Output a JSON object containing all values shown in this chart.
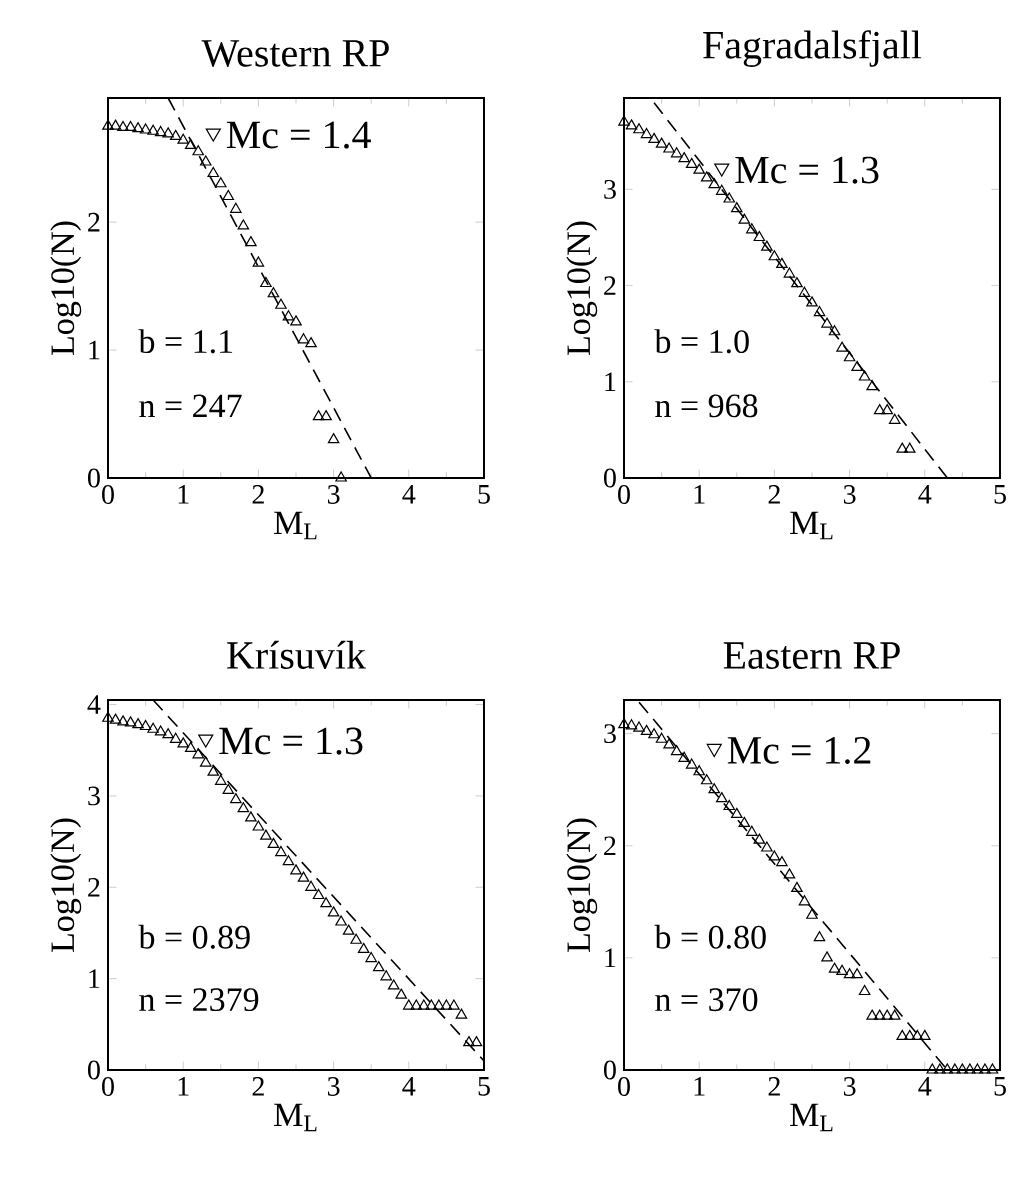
{
  "chart_data": [
    {
      "type": "scatter",
      "title": "Western RP",
      "xlabel": "M$_{L}$",
      "ylabel": "Log10(N)",
      "xlim": [
        0,
        5
      ],
      "ylim": [
        0,
        2.97
      ],
      "xticks": [
        0,
        1,
        2,
        3,
        4,
        5
      ],
      "yticks": [
        0,
        1,
        2
      ],
      "series": [
        {
          "marker": "triangle",
          "color": "#000000",
          "x": [
            0.0,
            0.1,
            0.2,
            0.3,
            0.4,
            0.5,
            0.6,
            0.7,
            0.8,
            0.9,
            1.0,
            1.1,
            1.2,
            1.3,
            1.4,
            1.5,
            1.6,
            1.7,
            1.8,
            1.9,
            2.0,
            2.1,
            2.2,
            2.3,
            2.4,
            2.5,
            2.6,
            2.7,
            2.8,
            2.9,
            3.0,
            3.1
          ],
          "values": [
            2.75,
            2.75,
            2.74,
            2.74,
            2.73,
            2.72,
            2.71,
            2.7,
            2.69,
            2.67,
            2.64,
            2.6,
            2.55,
            2.47,
            2.38,
            2.3,
            2.2,
            2.1,
            1.97,
            1.84,
            1.68,
            1.52,
            1.44,
            1.35,
            1.26,
            1.22,
            1.08,
            1.05,
            0.48,
            0.48,
            0.3,
            0.0
          ]
        },
        {
          "type": "line",
          "line_style": "dashed",
          "color": "#000000",
          "x": [
            0.8,
            3.5
          ],
          "values": [
            2.97,
            0.0
          ]
        }
      ],
      "annotations": [
        {
          "text": "Mc = 1.4",
          "x": 1.4,
          "y": 2.68
        },
        "b = 1.1",
        "n = 247"
      ]
    },
    {
      "type": "scatter",
      "title": "Fagradalsfjall",
      "xlabel": "M$_{L}$",
      "ylabel": "Log10(N)",
      "xlim": [
        0,
        5
      ],
      "ylim": [
        0,
        3.95
      ],
      "xticks": [
        0,
        1,
        2,
        3,
        4,
        5
      ],
      "yticks": [
        0,
        1,
        2,
        3
      ],
      "series": [
        {
          "marker": "triangle",
          "color": "#000000",
          "x": [
            0.0,
            0.1,
            0.2,
            0.3,
            0.4,
            0.5,
            0.6,
            0.7,
            0.8,
            0.9,
            1.0,
            1.1,
            1.2,
            1.3,
            1.4,
            1.5,
            1.6,
            1.7,
            1.8,
            1.9,
            2.0,
            2.1,
            2.2,
            2.3,
            2.4,
            2.5,
            2.6,
            2.7,
            2.8,
            2.9,
            3.0,
            3.1,
            3.2,
            3.3,
            3.4,
            3.5,
            3.6,
            3.7,
            3.8
          ],
          "values": [
            3.7,
            3.66,
            3.62,
            3.57,
            3.52,
            3.47,
            3.42,
            3.37,
            3.32,
            3.26,
            3.2,
            3.12,
            3.05,
            2.98,
            2.9,
            2.8,
            2.68,
            2.58,
            2.5,
            2.4,
            2.3,
            2.22,
            2.12,
            2.02,
            1.92,
            1.82,
            1.72,
            1.6,
            1.52,
            1.35,
            1.25,
            1.15,
            1.05,
            0.95,
            0.7,
            0.7,
            0.6,
            0.3,
            0.3
          ]
        },
        {
          "type": "line",
          "line_style": "dashed",
          "color": "#000000",
          "x": [
            0.4,
            4.3
          ],
          "values": [
            3.9,
            0.0
          ]
        }
      ],
      "annotations": [
        {
          "text": "Mc = 1.3",
          "x": 1.3,
          "y": 3.2
        },
        "b = 1.0",
        "n = 968"
      ]
    },
    {
      "type": "scatter",
      "title": "Krísuvík",
      "xlabel": "M$_{L}$",
      "ylabel": "Log10(N)",
      "xlim": [
        0,
        5
      ],
      "ylim": [
        0,
        4.05
      ],
      "xticks": [
        0,
        1,
        2,
        3,
        4,
        5
      ],
      "yticks": [
        0,
        1,
        2,
        3,
        4
      ],
      "series": [
        {
          "marker": "triangle",
          "color": "#000000",
          "x": [
            0.0,
            0.1,
            0.2,
            0.3,
            0.4,
            0.5,
            0.6,
            0.7,
            0.8,
            0.9,
            1.0,
            1.1,
            1.2,
            1.3,
            1.4,
            1.5,
            1.6,
            1.7,
            1.8,
            1.9,
            2.0,
            2.1,
            2.2,
            2.3,
            2.4,
            2.5,
            2.6,
            2.7,
            2.8,
            2.9,
            3.0,
            3.1,
            3.2,
            3.3,
            3.4,
            3.5,
            3.6,
            3.7,
            3.8,
            3.9,
            4.0,
            4.1,
            4.2,
            4.3,
            4.4,
            4.5,
            4.6,
            4.7,
            4.8,
            4.9
          ],
          "values": [
            3.85,
            3.83,
            3.81,
            3.8,
            3.78,
            3.76,
            3.73,
            3.7,
            3.67,
            3.62,
            3.57,
            3.52,
            3.45,
            3.36,
            3.26,
            3.16,
            3.06,
            2.96,
            2.86,
            2.76,
            2.66,
            2.56,
            2.47,
            2.38,
            2.28,
            2.18,
            2.1,
            2.0,
            1.91,
            1.82,
            1.72,
            1.62,
            1.52,
            1.42,
            1.32,
            1.22,
            1.12,
            1.02,
            0.92,
            0.82,
            0.7,
            0.7,
            0.7,
            0.7,
            0.7,
            0.7,
            0.7,
            0.6,
            0.3,
            0.3
          ]
        },
        {
          "type": "line",
          "line_style": "dashed",
          "color": "#000000",
          "x": [
            0.6,
            5.0
          ],
          "values": [
            4.05,
            0.1
          ]
        }
      ],
      "annotations": [
        {
          "text": "Mc = 1.3",
          "x": 1.3,
          "y": 3.6
        },
        "b = 0.89",
        "n = 2379"
      ]
    },
    {
      "type": "scatter",
      "title": "Eastern RP",
      "xlabel": "M$_{L}$",
      "ylabel": "Log10(N)",
      "xlim": [
        0,
        5
      ],
      "ylim": [
        0,
        3.3
      ],
      "xticks": [
        0,
        1,
        2,
        3,
        4,
        5
      ],
      "yticks": [
        0,
        1,
        2,
        3
      ],
      "series": [
        {
          "marker": "triangle",
          "color": "#000000",
          "x": [
            0.0,
            0.1,
            0.2,
            0.3,
            0.4,
            0.5,
            0.6,
            0.7,
            0.8,
            0.9,
            1.0,
            1.1,
            1.2,
            1.3,
            1.4,
            1.5,
            1.6,
            1.7,
            1.8,
            1.9,
            2.0,
            2.1,
            2.2,
            2.3,
            2.4,
            2.5,
            2.6,
            2.7,
            2.8,
            2.9,
            3.0,
            3.1,
            3.2,
            3.3,
            3.4,
            3.5,
            3.6,
            3.7,
            3.8,
            3.9,
            4.0,
            4.1,
            4.2,
            4.3,
            4.4,
            4.5,
            4.6,
            4.7,
            4.8,
            4.9
          ],
          "values": [
            3.08,
            3.07,
            3.05,
            3.02,
            2.99,
            2.95,
            2.9,
            2.84,
            2.78,
            2.72,
            2.66,
            2.58,
            2.5,
            2.42,
            2.35,
            2.28,
            2.2,
            2.12,
            2.05,
            1.98,
            1.9,
            1.85,
            1.74,
            1.62,
            1.5,
            1.38,
            1.18,
            1.0,
            0.9,
            0.88,
            0.85,
            0.85,
            0.7,
            0.48,
            0.48,
            0.48,
            0.48,
            0.3,
            0.3,
            0.3,
            0.3,
            0.0,
            0.0,
            0.0,
            0.0,
            0.0,
            0.0,
            0.0,
            0.0,
            0.0
          ]
        },
        {
          "type": "line",
          "line_style": "dashed",
          "color": "#000000",
          "x": [
            0.2,
            4.3
          ],
          "values": [
            3.28,
            0.0
          ]
        }
      ],
      "annotations": [
        {
          "text": "Mc = 1.2",
          "x": 1.2,
          "y": 2.85
        },
        "b = 0.80",
        "n = 370"
      ]
    }
  ]
}
